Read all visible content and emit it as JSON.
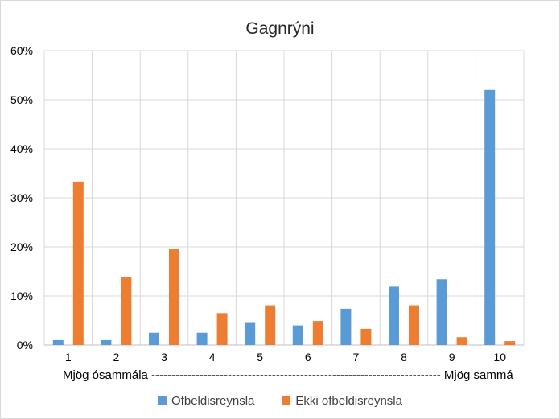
{
  "chart_data": {
    "type": "bar",
    "title": "Gagnrýni",
    "categories": [
      "1",
      "2",
      "3",
      "4",
      "5",
      "6",
      "7",
      "8",
      "9",
      "10"
    ],
    "series": [
      {
        "name": "Ofbeldisreynsla",
        "color": "#5b9bd5",
        "values": [
          1.0,
          1.0,
          2.5,
          2.5,
          4.5,
          4.0,
          7.4,
          11.9,
          13.4,
          52.0
        ]
      },
      {
        "name": "Ekki ofbeldisreynsla",
        "color": "#ed7d31",
        "values": [
          33.3,
          13.8,
          19.5,
          6.5,
          8.1,
          4.9,
          3.3,
          8.1,
          1.6,
          0.8
        ]
      }
    ],
    "ylim": [
      0,
      60
    ],
    "yticks": [
      "0%",
      "10%",
      "20%",
      "30%",
      "40%",
      "50%",
      "60%"
    ],
    "xlabel_left": "Mjög ósammála",
    "xlabel_right": "Mjög sammála",
    "grid": true,
    "legend_position": "bottom"
  }
}
